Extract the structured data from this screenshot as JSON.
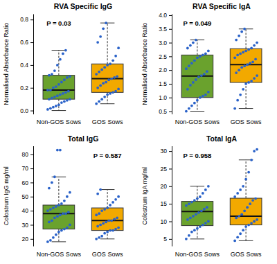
{
  "chart_data": [
    {
      "type": "box",
      "title": "RVA Specific IgG",
      "y_label": "Normalised Absorbance Ratio",
      "categories": [
        "Non-GOS Sows",
        "GOS Sows"
      ],
      "colors": [
        "#6aa22d",
        "#f2a900"
      ],
      "ylim": [
        -0.03,
        0.85
      ],
      "yticks": [
        {
          "value": 0,
          "label": "0.0"
        },
        0.2,
        0.4,
        0.6,
        0.8
      ],
      "annotation": "P = 0.03",
      "boxes": [
        {
          "whisker_low": 0.0,
          "q1": 0.1,
          "median": 0.18,
          "q3": 0.31,
          "whisker_high": 0.53
        },
        {
          "whisker_low": 0.06,
          "q1": 0.16,
          "median": 0.28,
          "q3": 0.41,
          "whisker_high": 0.77
        }
      ],
      "points": [
        [
          0.01,
          0.02,
          0.03,
          0.04,
          0.05,
          0.07,
          0.08,
          0.09,
          0.1,
          0.1,
          0.11,
          0.12,
          0.13,
          0.14,
          0.15,
          0.16,
          0.17,
          0.18,
          0.18,
          0.2,
          0.21,
          0.23,
          0.25,
          0.27,
          0.29,
          0.3,
          0.31,
          0.32,
          0.35,
          0.4,
          0.45,
          0.5,
          0.53
        ],
        [
          0.06,
          0.08,
          0.1,
          0.12,
          0.14,
          0.15,
          0.16,
          0.17,
          0.19,
          0.2,
          0.22,
          0.24,
          0.25,
          0.27,
          0.28,
          0.29,
          0.3,
          0.32,
          0.34,
          0.36,
          0.38,
          0.4,
          0.41,
          0.44,
          0.48,
          0.55,
          0.6,
          0.65,
          0.72,
          0.77
        ]
      ]
    },
    {
      "type": "box",
      "title": "RVA Specific IgA",
      "y_label": "Normalised Absorbance Ratio",
      "categories": [
        "Non-GOS Sows",
        "GOS Sows"
      ],
      "colors": [
        "#6aa22d",
        "#f2a900"
      ],
      "ylim": [
        0.4,
        4.05
      ],
      "yticks": [
        0.5,
        {
          "value": 1,
          "label": "1.0"
        },
        1.5,
        {
          "value": 2,
          "label": "2.0"
        },
        2.5,
        {
          "value": 3,
          "label": "3.0"
        },
        3.5,
        {
          "value": 4,
          "label": "4.0"
        }
      ],
      "annotation": "P = 0.049",
      "boxes": [
        {
          "whisker_low": 0.5,
          "q1": 1.0,
          "median": 1.78,
          "q3": 2.55,
          "whisker_high": 3.1
        },
        {
          "whisker_low": 0.6,
          "q1": 1.55,
          "median": 2.2,
          "q3": 2.78,
          "whisker_high": 3.5
        }
      ],
      "points": [
        [
          0.5,
          0.6,
          0.7,
          0.8,
          0.9,
          1.0,
          1.05,
          1.1,
          1.2,
          1.3,
          1.45,
          1.55,
          1.65,
          1.75,
          1.8,
          1.85,
          1.95,
          2.05,
          2.15,
          2.25,
          2.35,
          2.45,
          2.5,
          2.55,
          2.6,
          2.7,
          2.8,
          2.9,
          3.0,
          3.1
        ],
        [
          0.6,
          0.9,
          1.1,
          1.3,
          1.5,
          1.55,
          1.6,
          1.7,
          1.8,
          1.9,
          2.0,
          2.1,
          2.15,
          2.2,
          2.25,
          2.3,
          2.4,
          2.45,
          2.55,
          2.6,
          2.65,
          2.7,
          2.75,
          2.8,
          2.9,
          3.0,
          3.1,
          3.25,
          3.4,
          3.5
        ]
      ]
    },
    {
      "type": "box",
      "title": "Total IgG",
      "y_label": "Colostrum IgG mg/ml",
      "categories": [
        "Non-GOS Sows",
        "GOS Sows"
      ],
      "colors": [
        "#6aa22d",
        "#f2a900"
      ],
      "ylim": [
        15,
        86
      ],
      "yticks": [
        20,
        30,
        40,
        50,
        60,
        70,
        80
      ],
      "annotation": "P = 0.587",
      "boxes": [
        {
          "whisker_low": 18,
          "q1": 27,
          "median": 38,
          "q3": 44,
          "whisker_high": 64
        },
        {
          "whisker_low": 20,
          "q1": 26,
          "median": 33,
          "q3": 42,
          "whisker_high": 55
        }
      ],
      "points": [
        [
          18,
          19,
          21,
          23,
          25,
          26,
          27,
          28,
          30,
          32,
          33,
          35,
          36,
          37,
          38,
          38,
          39,
          40,
          41,
          42,
          43,
          44,
          45,
          47,
          50,
          53,
          56,
          60,
          64,
          83,
          83
        ],
        [
          20,
          21,
          22,
          24,
          25,
          26,
          26,
          27,
          28,
          29,
          30,
          31,
          32,
          33,
          33,
          34,
          35,
          37,
          38,
          40,
          41,
          42,
          44,
          46,
          48,
          50,
          52,
          55
        ]
      ]
    },
    {
      "type": "box",
      "title": "Total IgA",
      "y_label": "Colostrum IgA mg/ml",
      "categories": [
        "Non-GOS Sows",
        "GOS Sows"
      ],
      "colors": [
        "#6aa22d",
        "#f2a900"
      ],
      "ylim": [
        3,
        31.5
      ],
      "yticks": [
        5,
        10,
        15,
        20,
        25,
        30
      ],
      "annotation": "P = 0.958",
      "boxes": [
        {
          "whisker_low": 5,
          "q1": 8.8,
          "median": 12.8,
          "q3": 15.7,
          "whisker_high": 20
        },
        {
          "whisker_low": 4.5,
          "q1": 9,
          "median": 11.5,
          "q3": 16.6,
          "whisker_high": 27.5
        }
      ],
      "points": [
        [
          5,
          6,
          7,
          7.5,
          8,
          8.5,
          9,
          9.5,
          10,
          10.5,
          11,
          11.5,
          12,
          12.5,
          13,
          13.5,
          14,
          14.5,
          15,
          15.5,
          16,
          16.5,
          17,
          18,
          19,
          20
        ],
        [
          4.5,
          5.5,
          6.5,
          7.5,
          8.5,
          9,
          9.5,
          10,
          10.5,
          11,
          11.5,
          12,
          13,
          14,
          15,
          16,
          16.5,
          17,
          18,
          19,
          20,
          22,
          24,
          27.5,
          30,
          30.5
        ]
      ]
    }
  ]
}
